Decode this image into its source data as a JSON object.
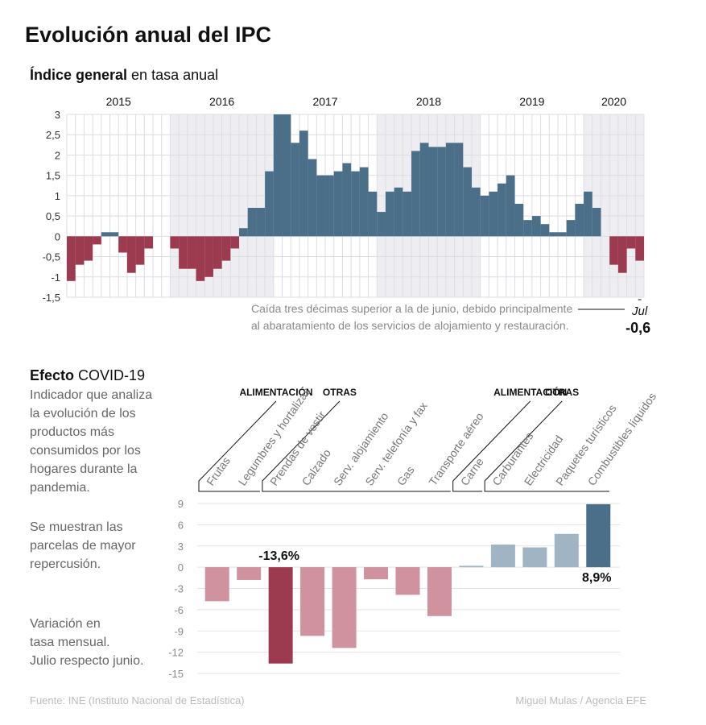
{
  "title": "Evolución anual del IPC",
  "chart_data": [
    {
      "type": "bar",
      "title_bold": "Índice general",
      "title_rest": "en tasa anual",
      "years": [
        {
          "label": "2015",
          "values": [
            -1.1,
            -0.7,
            -0.6,
            -0.2,
            0.1,
            0.1,
            -0.4,
            -0.9,
            -0.7,
            -0.3,
            0,
            0
          ]
        },
        {
          "label": "2016",
          "values": [
            -0.3,
            -0.8,
            -0.8,
            -1.1,
            -1.0,
            -0.8,
            -0.6,
            -0.3,
            0.2,
            0.7,
            0.7,
            1.6
          ]
        },
        {
          "label": "2017",
          "values": [
            3.0,
            3.0,
            2.3,
            2.6,
            1.9,
            1.5,
            1.5,
            1.6,
            1.8,
            1.6,
            1.7,
            1.1
          ]
        },
        {
          "label": "2018",
          "values": [
            0.6,
            1.1,
            1.2,
            1.1,
            2.1,
            2.3,
            2.2,
            2.2,
            2.3,
            2.3,
            1.7,
            1.2
          ]
        },
        {
          "label": "2019",
          "values": [
            1.0,
            1.1,
            1.3,
            1.5,
            0.8,
            0.4,
            0.5,
            0.3,
            0.1,
            0.1,
            0.4,
            0.8
          ]
        },
        {
          "label": "2020",
          "values": [
            1.1,
            0.7,
            0,
            -0.7,
            -0.9,
            -0.3,
            -0.6
          ],
          "value_labels": [
            null,
            null,
            null,
            null,
            null,
            null,
            "-0,6"
          ]
        }
      ],
      "positive_color": "#4b6e89",
      "negative_color": "#9c3b50",
      "ylim": [
        -1.5,
        3
      ],
      "yticks": [
        3,
        {
          "value": 2.5,
          "label": "2,5"
        },
        2,
        {
          "value": 1.5,
          "label": "1,5"
        },
        1,
        {
          "value": 0.5,
          "label": "0,5"
        },
        0,
        {
          "value": -0.5,
          "label": "-0,5"
        },
        -1,
        {
          "value": -1.5,
          "label": "-1,5"
        }
      ],
      "grid": true,
      "annotation": {
        "lines": [
          "Caída tres décimas superior a la de junio, debido principalmente",
          "al abaratamiento de los servicios de alojamiento y restauración."
        ],
        "label": "Jul"
      }
    },
    {
      "type": "bar",
      "title_bold": "Efecto",
      "title_rest": "COVID-19",
      "description": [
        "Indicador que analiza",
        "la evolución de los",
        "productos más",
        "consumidos por los",
        "hogares durante la",
        "pandemia."
      ],
      "note": [
        "Se muestran las",
        "parcelas de mayor",
        "repercusión."
      ],
      "measure": [
        "Variación en",
        "tasa mensual.",
        "Julio respecto junio."
      ],
      "groups": [
        {
          "label": "ALIMENTACIÓN",
          "categories": [
            "Frutas",
            "Legumbres y hortalizas"
          ]
        },
        {
          "label": "OTRAS",
          "categories": [
            "Prendas de vestir",
            "Calzado",
            "Serv. alojamiento",
            "Serv. telefonía y fax",
            "Gas",
            "Transporte aéreo"
          ]
        },
        {
          "label": "ALIMENTACIÓN",
          "categories": [
            "Carne"
          ]
        },
        {
          "label": "OTRAS",
          "categories": [
            "Carburantes",
            "Electricidad",
            "Paquetes turísticos",
            "Combustibles líquidos"
          ]
        }
      ],
      "values": [
        -4.8,
        -1.8,
        -13.6,
        -9.7,
        -11.4,
        -1.7,
        -3.9,
        -6.9,
        0.2,
        3.2,
        2.8,
        4.7,
        8.9
      ],
      "value_labels": [
        null,
        null,
        "-13,6%",
        null,
        null,
        null,
        null,
        null,
        null,
        null,
        null,
        null,
        "8,9%"
      ],
      "colors": [
        "#cf929e",
        "#cf929e",
        "#9c3b50",
        "#cf929e",
        "#cf929e",
        "#cf929e",
        "#cf929e",
        "#cf929e",
        "#a0b4c3",
        "#a0b4c3",
        "#a0b4c3",
        "#a0b4c3",
        "#4b6e89"
      ],
      "ylim": [
        -15,
        9
      ],
      "yticks": [
        9,
        6,
        3,
        0,
        -3,
        -6,
        -9,
        -12,
        -15
      ],
      "grid": true
    }
  ],
  "footer": {
    "source": "Fuente: INE (Instituto Nacional de Estadística)",
    "credit": "Miguel Mulas / Agencia EFE"
  }
}
